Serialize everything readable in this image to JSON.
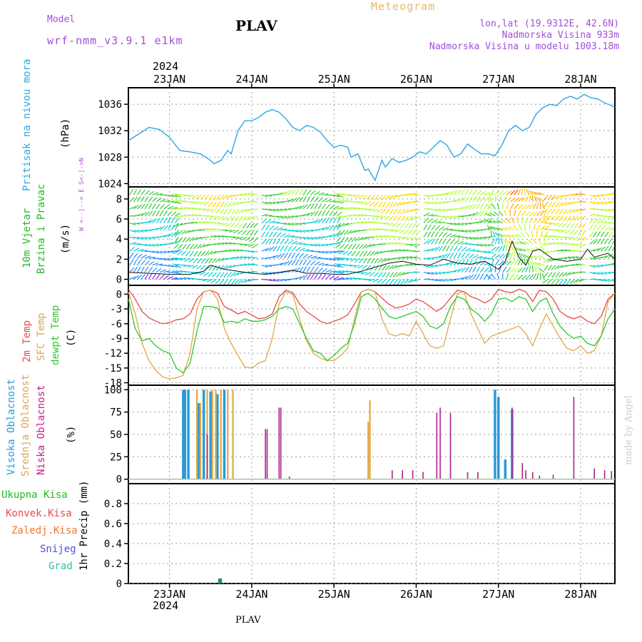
{
  "header": {
    "model_label": "Model",
    "model_value": "wrf-nmm_v3.9.1 e1km",
    "title": "PLAV",
    "app_title": "Meteogram",
    "coords": "lon,lat (19.9312E, 42.6N)",
    "elevation": "Nadmorska Visina 933m",
    "model_elevation": "Nadmorska Visina u modelu 1003.18m",
    "year_top": "2024",
    "year_bottom": "2024",
    "footer": "PLAV",
    "credit": "made by Angel"
  },
  "colors": {
    "pressure": "#2aa8e0",
    "temp2m": "#e84a4a",
    "sfc": "#e0a848",
    "dew": "#2ec82e",
    "wind_label_green": "#22bb22",
    "wind_arrows": [
      "#8a2be2",
      "#1e90ff",
      "#00ced1",
      "#32cd32",
      "#adff2f",
      "#ffd700",
      "#ffa500",
      "#ff4500"
    ],
    "cloud_high": "#2a9ad8",
    "cloud_mid": "#e0a848",
    "cloud_low": "#b0208a",
    "precip": "#1a8a70"
  },
  "chart_data": [
    {
      "type": "line",
      "panel": "pressure",
      "ylabel": [
        "Pritisak na nivou mora",
        "(hPa)"
      ],
      "yticks": [
        1024,
        1028,
        1032,
        1036
      ],
      "ylim": [
        1023.5,
        1038.5
      ],
      "xlim": [
        0,
        142
      ],
      "x_ticks": [
        12,
        36,
        60,
        84,
        108,
        132
      ],
      "x_tick_labels": [
        "23JAN",
        "24JAN",
        "25JAN",
        "26JAN",
        "27JAN",
        "28JAN"
      ],
      "series": [
        {
          "x": [
            0,
            3,
            6,
            9,
            12,
            15,
            18,
            21,
            24,
            25,
            27,
            29,
            30,
            32,
            34,
            36,
            38,
            40,
            42,
            44,
            46,
            48,
            50,
            52,
            54,
            56,
            58,
            60,
            62,
            64,
            65,
            67,
            69,
            70,
            72,
            74,
            75,
            77,
            79,
            81,
            83,
            85,
            87,
            89,
            91,
            93,
            95,
            97,
            99,
            101,
            103,
            105,
            107,
            109,
            111,
            113,
            115,
            117,
            119,
            121,
            123,
            125,
            127,
            129,
            131,
            133,
            135,
            137,
            139,
            141,
            142
          ],
          "values": [
            1030.5,
            1031.5,
            1032.5,
            1032.2,
            1031.0,
            1029.0,
            1028.8,
            1028.5,
            1027.5,
            1027.0,
            1027.5,
            1029.0,
            1028.5,
            1032.0,
            1033.5,
            1033.5,
            1034.0,
            1034.8,
            1035.2,
            1034.8,
            1033.8,
            1032.5,
            1032.0,
            1032.8,
            1032.5,
            1031.8,
            1030.5,
            1029.5,
            1029.8,
            1029.5,
            1028.0,
            1028.5,
            1026.0,
            1026.2,
            1024.5,
            1027.5,
            1026.5,
            1027.8,
            1027.2,
            1027.5,
            1028.0,
            1028.8,
            1028.5,
            1029.5,
            1030.5,
            1029.8,
            1028.0,
            1028.5,
            1030.0,
            1029.2,
            1028.5,
            1028.5,
            1028.2,
            1029.8,
            1032.0,
            1032.8,
            1032.0,
            1032.5,
            1034.5,
            1035.5,
            1036.0,
            1035.8,
            1036.8,
            1037.2,
            1036.8,
            1037.5,
            1037.0,
            1036.8,
            1036.2,
            1035.8,
            1035.5
          ]
        }
      ]
    },
    {
      "type": "scatter",
      "panel": "wind",
      "ylabel": [
        "10m Vjetar",
        "Brzina i Pravac",
        "(m/s)"
      ],
      "compass": "W <--|--> E  S<-|->N",
      "yticks": [
        0,
        2,
        4,
        6,
        8
      ],
      "ylim": [
        -0.6,
        9.2
      ],
      "series": [
        {
          "name": "speed",
          "x": [
            0,
            6,
            12,
            18,
            22,
            24,
            28,
            32,
            36,
            40,
            44,
            48,
            52,
            56,
            60,
            64,
            68,
            72,
            76,
            80,
            84,
            88,
            92,
            96,
            100,
            104,
            106,
            108,
            110,
            112,
            114,
            116,
            118,
            120,
            124,
            128,
            132,
            134,
            136,
            140,
            142
          ],
          "values": [
            0.7,
            0.6,
            0.5,
            0.5,
            0.8,
            1.4,
            1.0,
            0.8,
            0.6,
            0.5,
            0.7,
            0.9,
            0.6,
            0.6,
            0.5,
            0.5,
            0.8,
            1.2,
            1.6,
            1.8,
            1.5,
            1.4,
            2.0,
            1.6,
            1.5,
            1.8,
            1.4,
            1.0,
            1.8,
            3.8,
            2.2,
            1.4,
            2.8,
            3.0,
            2.0,
            1.8,
            2.0,
            3.0,
            2.2,
            2.6,
            2.0
          ]
        }
      ]
    },
    {
      "type": "line",
      "panel": "temperature",
      "ylabel": [
        "2m Temp",
        "SFC Temp",
        "dewpt Temp",
        "(C)"
      ],
      "yticks": [
        0,
        -3,
        -6,
        -9,
        -12,
        -15,
        -18
      ],
      "ylim": [
        -18.5,
        1.8
      ],
      "series": [
        {
          "name": "2m Temp",
          "x": [
            0,
            2,
            4,
            6,
            8,
            10,
            12,
            14,
            16,
            18,
            20,
            22,
            24,
            26,
            28,
            30,
            32,
            34,
            36,
            38,
            40,
            42,
            44,
            46,
            48,
            50,
            52,
            54,
            56,
            58,
            60,
            62,
            64,
            66,
            68,
            70,
            72,
            74,
            76,
            78,
            80,
            82,
            84,
            86,
            88,
            90,
            92,
            94,
            96,
            98,
            100,
            102,
            104,
            106,
            108,
            110,
            112,
            114,
            116,
            118,
            120,
            122,
            124,
            126,
            128,
            130,
            132,
            134,
            136,
            138,
            140,
            142
          ],
          "values": [
            1.0,
            -1.0,
            -3.5,
            -4.8,
            -5.5,
            -6.0,
            -5.8,
            -5.2,
            -5.0,
            -4.0,
            -1.0,
            0.5,
            0.8,
            0.2,
            -2.5,
            -3.2,
            -4.0,
            -3.5,
            -4.2,
            -5.0,
            -4.8,
            -4.0,
            -0.5,
            0.8,
            0.3,
            -2.0,
            -3.5,
            -4.5,
            -5.5,
            -6.0,
            -5.5,
            -5.0,
            -4.2,
            -2.0,
            0.5,
            1.0,
            0.5,
            -0.8,
            -2.0,
            -2.8,
            -2.5,
            -2.0,
            -1.0,
            -1.5,
            -2.5,
            -3.5,
            -2.5,
            -0.8,
            0.8,
            0.5,
            -0.5,
            -1.0,
            -1.8,
            -1.0,
            1.0,
            0.5,
            0.3,
            1.0,
            0.5,
            -1.5,
            0.8,
            0.5,
            -1.0,
            -3.5,
            -4.5,
            -5.0,
            -4.5,
            -5.5,
            -6.0,
            -4.5,
            -1.0,
            0.2
          ]
        },
        {
          "name": "SFC Temp",
          "x": [
            0,
            2,
            4,
            6,
            8,
            10,
            12,
            14,
            16,
            18,
            20,
            22,
            24,
            26,
            28,
            30,
            32,
            34,
            36,
            38,
            40,
            42,
            44,
            46,
            48,
            50,
            52,
            54,
            56,
            58,
            60,
            62,
            64,
            66,
            68,
            70,
            72,
            74,
            76,
            78,
            80,
            82,
            84,
            86,
            88,
            90,
            92,
            94,
            96,
            98,
            100,
            102,
            104,
            106,
            108,
            110,
            112,
            114,
            116,
            118,
            120,
            122,
            124,
            126,
            128,
            130,
            132,
            134,
            136,
            138,
            140,
            142
          ],
          "values": [
            0.5,
            -4.0,
            -10.0,
            -13.5,
            -15.5,
            -16.8,
            -17.2,
            -17.0,
            -16.5,
            -12.0,
            -3.0,
            0.5,
            0.8,
            -1.0,
            -7.0,
            -10.0,
            -12.5,
            -14.8,
            -15.0,
            -14.0,
            -13.5,
            -9.0,
            -2.0,
            0.5,
            0.0,
            -5.0,
            -9.5,
            -12.0,
            -13.0,
            -13.5,
            -13.5,
            -12.5,
            -11.0,
            -5.0,
            0.5,
            1.0,
            0.5,
            -5.0,
            -8.0,
            -8.5,
            -8.0,
            -8.5,
            -5.5,
            -8.0,
            -10.5,
            -11.0,
            -10.5,
            -5.0,
            0.2,
            0.5,
            -4.0,
            -7.0,
            -10.0,
            -8.5,
            -8.0,
            -7.5,
            -7.0,
            -6.5,
            -8.0,
            -10.5,
            -7.0,
            -4.0,
            -6.5,
            -9.0,
            -11.0,
            -11.5,
            -10.5,
            -12.0,
            -11.5,
            -8.5,
            -1.5,
            0.2
          ]
        },
        {
          "name": "dewpt Temp",
          "x": [
            0,
            2,
            4,
            6,
            8,
            10,
            12,
            14,
            16,
            18,
            20,
            22,
            24,
            26,
            28,
            30,
            32,
            34,
            36,
            38,
            40,
            42,
            44,
            46,
            48,
            50,
            52,
            54,
            56,
            58,
            60,
            62,
            64,
            66,
            68,
            70,
            72,
            74,
            76,
            78,
            80,
            82,
            84,
            86,
            88,
            90,
            92,
            94,
            96,
            98,
            100,
            102,
            104,
            106,
            108,
            110,
            112,
            114,
            116,
            118,
            120,
            122,
            124,
            126,
            128,
            130,
            132,
            134,
            136,
            138,
            140,
            142
          ],
          "values": [
            -1.0,
            -7.0,
            -9.5,
            -9.0,
            -10.5,
            -11.5,
            -12.0,
            -15.0,
            -16.0,
            -14.0,
            -7.5,
            -2.5,
            -2.5,
            -2.8,
            -5.8,
            -5.5,
            -5.8,
            -5.0,
            -5.5,
            -5.5,
            -5.2,
            -4.5,
            -3.0,
            -2.5,
            -3.0,
            -6.0,
            -9.0,
            -11.5,
            -12.0,
            -13.5,
            -12.5,
            -11.0,
            -10.0,
            -6.0,
            -0.5,
            0.2,
            -1.0,
            -2.8,
            -4.5,
            -5.0,
            -4.5,
            -4.0,
            -3.5,
            -4.5,
            -6.5,
            -7.0,
            -6.0,
            -2.5,
            -0.5,
            -1.0,
            -3.0,
            -4.0,
            -5.5,
            -4.0,
            -1.0,
            -0.8,
            -1.5,
            -0.5,
            -1.0,
            -3.5,
            -1.5,
            -0.8,
            -4.0,
            -6.5,
            -8.0,
            -9.0,
            -8.5,
            -10.0,
            -10.5,
            -8.5,
            -5.0,
            -3.0
          ]
        }
      ]
    },
    {
      "type": "bar",
      "panel": "clouds",
      "ylabel": [
        "Visoka Oblacnost",
        "Srednja Oblacnost",
        "Niska Oblacnost",
        "(%)"
      ],
      "yticks": [
        0,
        25,
        50,
        75,
        100
      ],
      "ylim": [
        -5,
        105
      ],
      "series": [
        {
          "name": "Visoka Oblacnost",
          "x": [
            16,
            16.5,
            17.5,
            20.5,
            22,
            24,
            26,
            28,
            107,
            108,
            110,
            112
          ],
          "values": [
            100,
            100,
            100,
            85,
            100,
            98,
            95,
            100,
            100,
            92,
            22,
            78
          ]
        },
        {
          "name": "Srednja Oblacnost",
          "x": [
            20,
            21,
            23,
            24.5,
            25.5,
            27,
            29,
            30.5,
            70,
            70.5
          ],
          "values": [
            100,
            85,
            100,
            100,
            100,
            100,
            100,
            100,
            64,
            88
          ]
        },
        {
          "name": "Niska Oblacnost",
          "x": [
            23,
            40,
            40.5,
            44,
            44.5,
            47,
            77,
            80,
            83,
            86,
            90,
            91,
            94,
            99,
            102,
            112,
            115,
            116,
            118,
            120,
            124,
            130,
            136,
            139,
            141
          ],
          "values": [
            50,
            56,
            56,
            80,
            80,
            3,
            10,
            10,
            10,
            8,
            74,
            80,
            74,
            8,
            8,
            80,
            18,
            10,
            8,
            4,
            5,
            92,
            12,
            10,
            9
          ]
        }
      ]
    },
    {
      "type": "bar",
      "panel": "precip",
      "legend": [
        "Ukupna Kisa",
        "Konvek.Kisa",
        "Zaledj.Kisa",
        "Snijeg",
        "Grad"
      ],
      "ylabel": [
        "1hr Precip (mm)"
      ],
      "yticks": [
        0,
        0.2,
        0.4,
        0.6,
        0.8
      ],
      "ylim": [
        0,
        1.0
      ],
      "series": [
        {
          "name": "Ukupna Kisa",
          "x": [
            26.5,
            27
          ],
          "values": [
            0.05,
            0.05
          ]
        }
      ]
    }
  ]
}
